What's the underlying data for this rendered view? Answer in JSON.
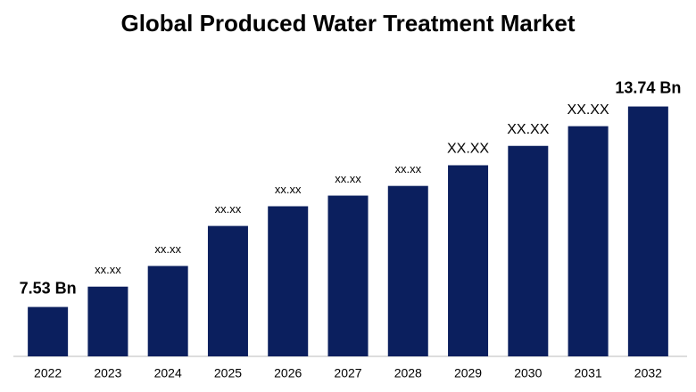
{
  "chart_data": {
    "type": "bar",
    "title": "Global Produced Water Treatment Market",
    "categories": [
      "2022",
      "2023",
      "2024",
      "2025",
      "2026",
      "2027",
      "2028",
      "2029",
      "2030",
      "2031",
      "2032"
    ],
    "values": [
      7.53,
      8.16,
      8.8,
      10.04,
      10.65,
      10.98,
      11.28,
      11.92,
      12.52,
      13.13,
      13.74
    ],
    "value_labels": [
      "7.53 Bn",
      null,
      null,
      null,
      null,
      null,
      null,
      null,
      null,
      null,
      "13.74 Bn"
    ],
    "placeholder_labels": [
      null,
      "xx.xx",
      "xx.xx",
      "xx.xx",
      "xx.xx",
      "xx.xx",
      "xx.xx",
      "XX.XX",
      "XX.XX",
      "XX.XX",
      null
    ],
    "color": "#0b1f5e",
    "ylim": [
      6,
      14.5
    ]
  }
}
